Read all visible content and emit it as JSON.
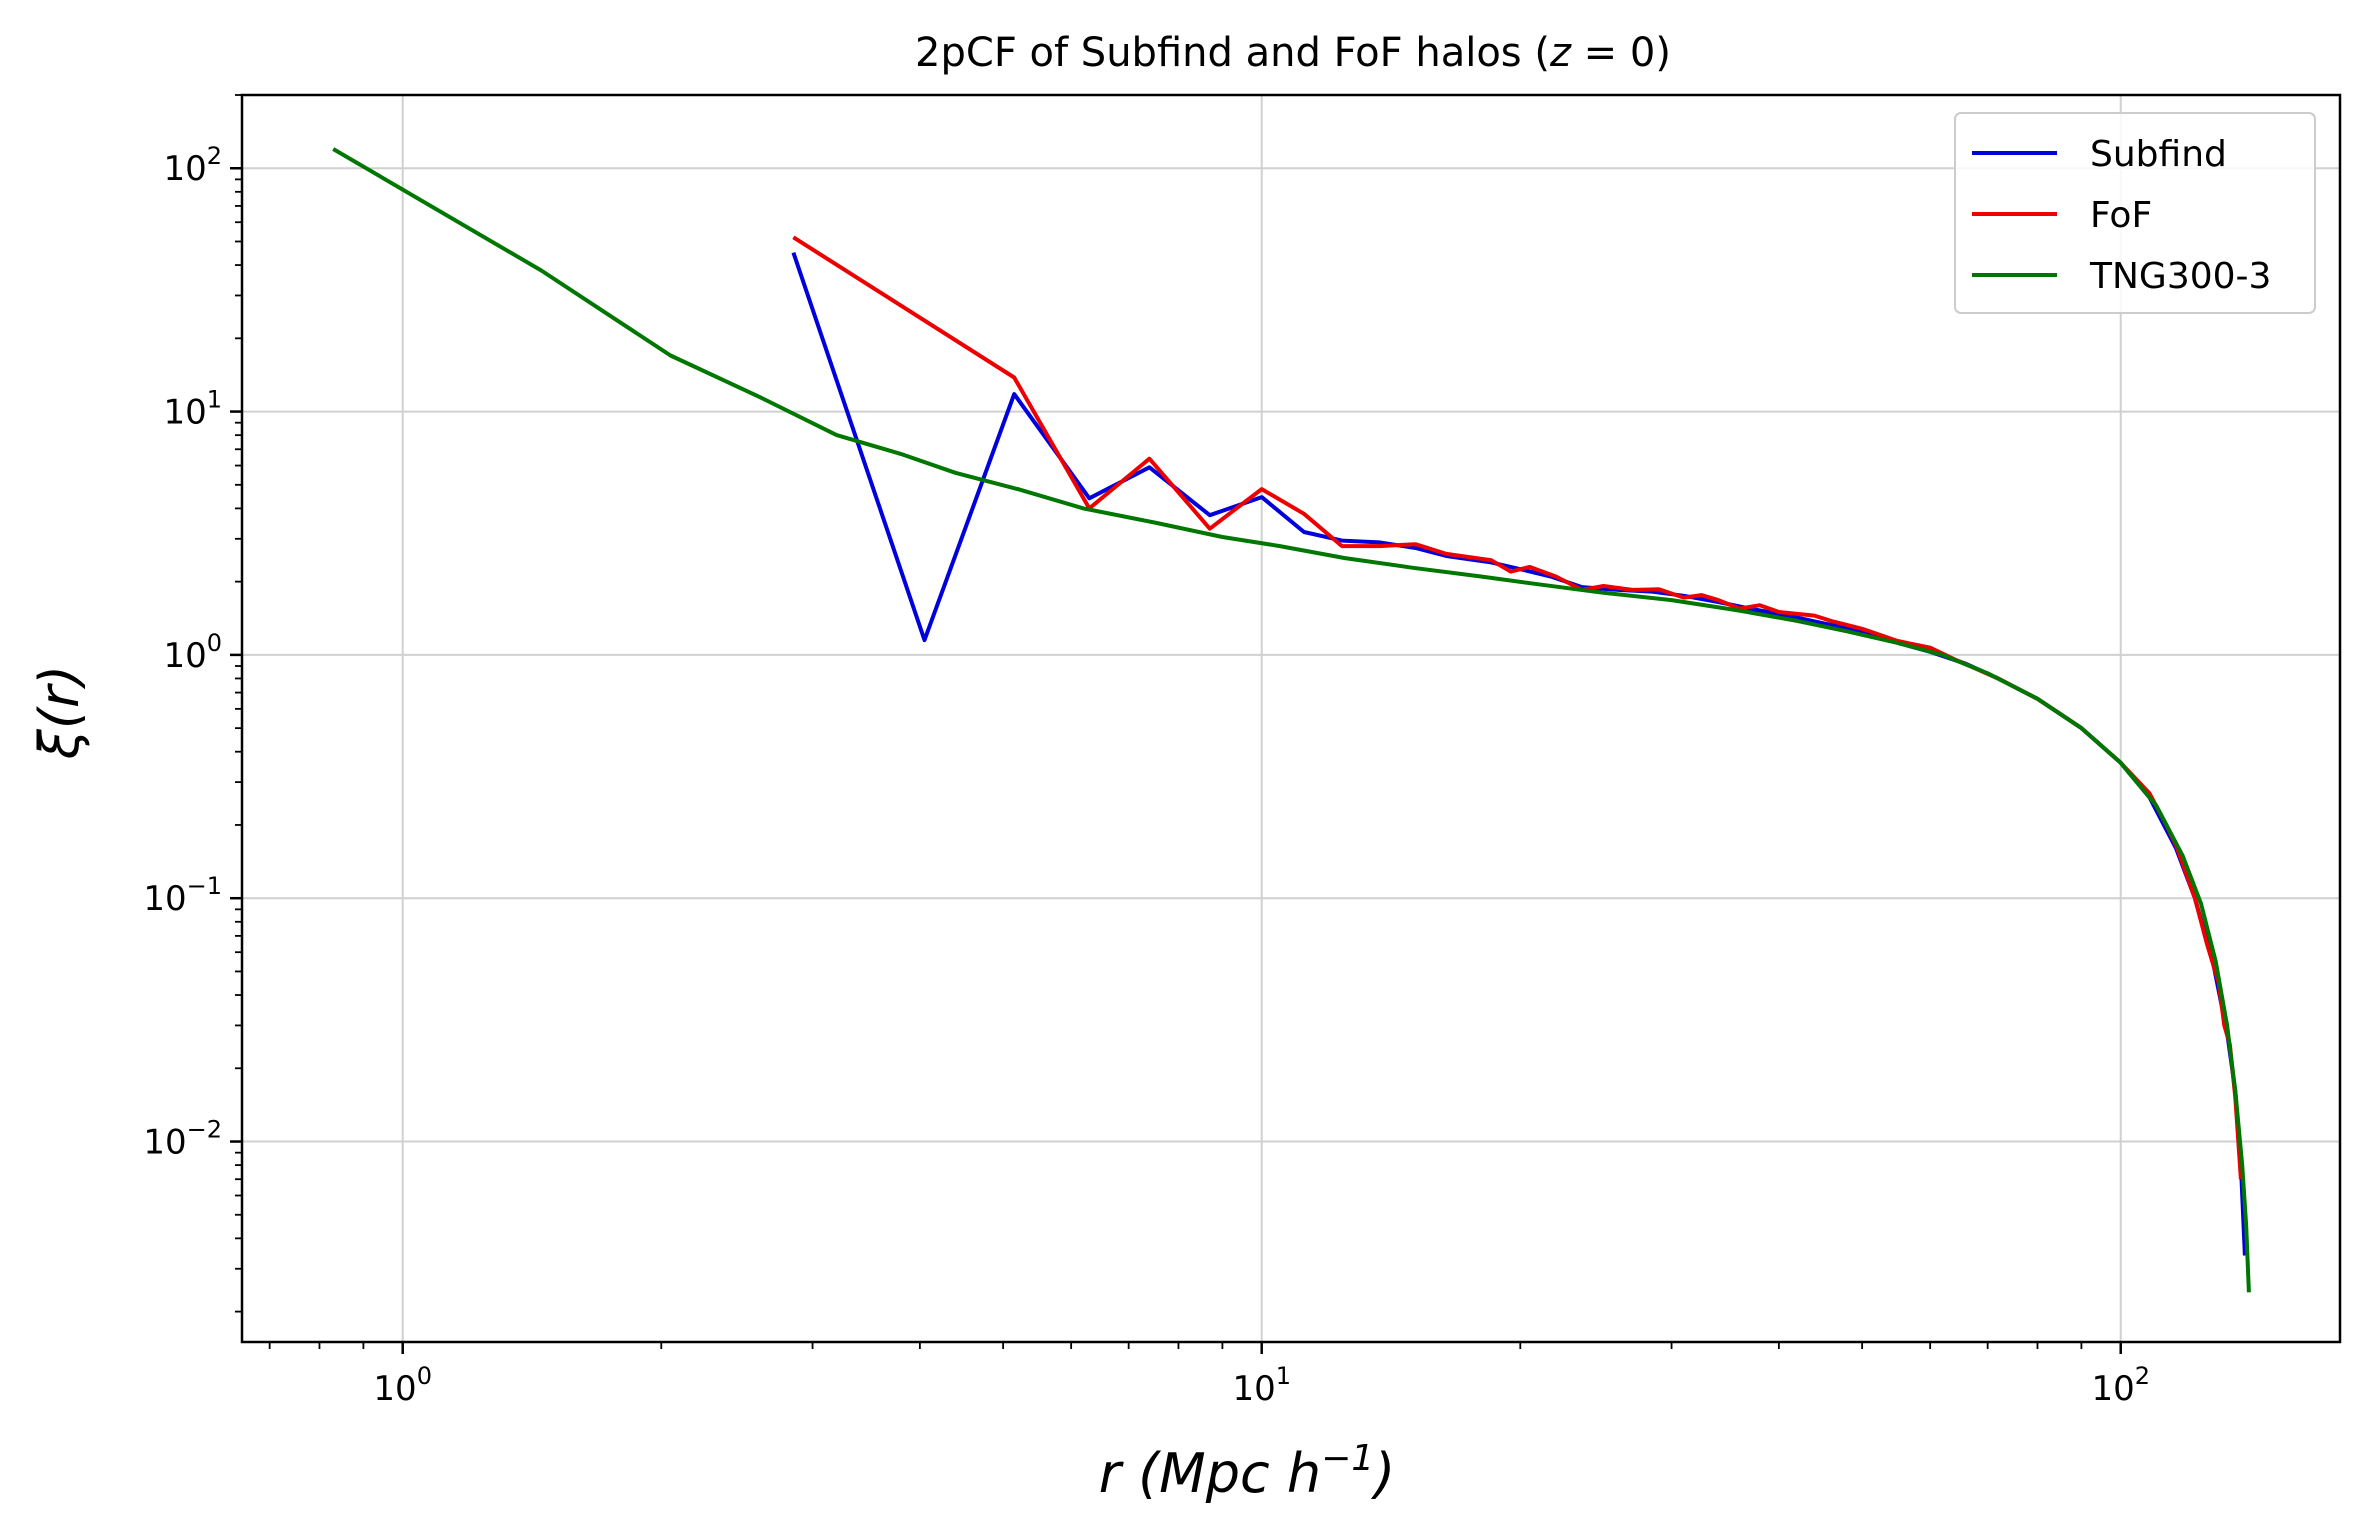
{
  "chart_data": {
    "type": "line",
    "title": "2pCF of Subfind and FoF halos (z = 0)",
    "xlabel": "r (Mpc h⁻¹)",
    "ylabel": "ξ(r)",
    "x_scale": "log",
    "y_scale": "log",
    "xlim": [
      0.65,
      180
    ],
    "ylim": [
      0.0015,
      200
    ],
    "grid": true,
    "legend_position": "top-right",
    "x_ticks": [
      {
        "value": 1,
        "base": "10",
        "exp": "0"
      },
      {
        "value": 10,
        "base": "10",
        "exp": "1"
      },
      {
        "value": 100,
        "base": "10",
        "exp": "2"
      }
    ],
    "y_ticks": [
      {
        "value": 0.01,
        "base": "10",
        "exp": "−2"
      },
      {
        "value": 0.1,
        "base": "10",
        "exp": "−1"
      },
      {
        "value": 1,
        "base": "10",
        "exp": "0"
      },
      {
        "value": 10,
        "base": "10",
        "exp": "1"
      },
      {
        "value": 100,
        "base": "10",
        "exp": "2"
      }
    ],
    "series": [
      {
        "name": "Subfind",
        "color": "#0000dd",
        "points": [
          [
            2.85,
            45
          ],
          [
            4.05,
            1.15
          ],
          [
            5.15,
            11.8
          ],
          [
            6.3,
            4.4
          ],
          [
            7.4,
            5.9
          ],
          [
            8.7,
            3.75
          ],
          [
            10.0,
            4.45
          ],
          [
            11.2,
            3.2
          ],
          [
            12.4,
            2.95
          ],
          [
            13.7,
            2.9
          ],
          [
            15.1,
            2.75
          ],
          [
            16.4,
            2.55
          ],
          [
            18.5,
            2.4
          ],
          [
            20.0,
            2.25
          ],
          [
            21.7,
            2.1
          ],
          [
            23.6,
            1.9
          ],
          [
            26.0,
            1.85
          ],
          [
            28.5,
            1.82
          ],
          [
            31.0,
            1.75
          ],
          [
            34.0,
            1.65
          ],
          [
            37.0,
            1.55
          ],
          [
            41.0,
            1.45
          ],
          [
            45.0,
            1.35
          ],
          [
            50.0,
            1.25
          ],
          [
            55.0,
            1.12
          ],
          [
            60.0,
            1.03
          ],
          [
            66.0,
            0.92
          ],
          [
            72.0,
            0.8
          ],
          [
            80.0,
            0.66
          ],
          [
            90.0,
            0.5
          ],
          [
            100.0,
            0.36
          ],
          [
            108.0,
            0.26
          ],
          [
            116.0,
            0.16
          ],
          [
            122.0,
            0.1
          ],
          [
            128.0,
            0.055
          ],
          [
            133.0,
            0.028
          ],
          [
            136.0,
            0.016
          ],
          [
            138.0,
            0.008
          ],
          [
            139.5,
            0.0034
          ]
        ]
      },
      {
        "name": "FoF",
        "color": "#ee0000",
        "points": [
          [
            2.85,
            52
          ],
          [
            5.15,
            13.8
          ],
          [
            6.3,
            4.0
          ],
          [
            7.4,
            6.4
          ],
          [
            8.7,
            3.3
          ],
          [
            10.0,
            4.8
          ],
          [
            11.2,
            3.8
          ],
          [
            12.4,
            2.8
          ],
          [
            13.7,
            2.8
          ],
          [
            15.1,
            2.85
          ],
          [
            16.4,
            2.6
          ],
          [
            18.5,
            2.45
          ],
          [
            19.5,
            2.2
          ],
          [
            20.5,
            2.3
          ],
          [
            22.0,
            2.1
          ],
          [
            23.6,
            1.85
          ],
          [
            25.0,
            1.92
          ],
          [
            27.0,
            1.85
          ],
          [
            29.0,
            1.86
          ],
          [
            31.0,
            1.72
          ],
          [
            32.5,
            1.76
          ],
          [
            34.0,
            1.68
          ],
          [
            36.0,
            1.55
          ],
          [
            38.0,
            1.6
          ],
          [
            40.0,
            1.5
          ],
          [
            44.0,
            1.45
          ],
          [
            46.0,
            1.38
          ],
          [
            50.0,
            1.28
          ],
          [
            55.0,
            1.14
          ],
          [
            60.0,
            1.07
          ],
          [
            64.0,
            0.96
          ],
          [
            72.0,
            0.8
          ],
          [
            80.0,
            0.66
          ],
          [
            90.0,
            0.5
          ],
          [
            100.0,
            0.36
          ],
          [
            108.0,
            0.27
          ],
          [
            113.0,
            0.2
          ],
          [
            116.0,
            0.165
          ],
          [
            122.0,
            0.1
          ],
          [
            126.0,
            0.065
          ],
          [
            130.0,
            0.045
          ],
          [
            132.0,
            0.03
          ],
          [
            134.0,
            0.025
          ],
          [
            136.0,
            0.015
          ],
          [
            138.0,
            0.007
          ]
        ]
      },
      {
        "name": "TNG300-3",
        "color": "#007700",
        "points": [
          [
            0.83,
            120
          ],
          [
            1.45,
            38
          ],
          [
            2.05,
            17
          ],
          [
            2.6,
            11.5
          ],
          [
            3.2,
            8.0
          ],
          [
            3.8,
            6.7
          ],
          [
            4.4,
            5.6
          ],
          [
            5.2,
            4.8
          ],
          [
            6.2,
            4.0
          ],
          [
            7.5,
            3.5
          ],
          [
            9.0,
            3.05
          ],
          [
            10.5,
            2.8
          ],
          [
            12.5,
            2.5
          ],
          [
            15.0,
            2.28
          ],
          [
            18.0,
            2.1
          ],
          [
            21.0,
            1.95
          ],
          [
            25.0,
            1.8
          ],
          [
            30.0,
            1.68
          ],
          [
            36.0,
            1.52
          ],
          [
            42.0,
            1.38
          ],
          [
            48.0,
            1.25
          ],
          [
            55.0,
            1.12
          ],
          [
            62.0,
            1.0
          ],
          [
            70.0,
            0.84
          ],
          [
            80.0,
            0.66
          ],
          [
            90.0,
            0.5
          ],
          [
            100.0,
            0.36
          ],
          [
            110.0,
            0.24
          ],
          [
            118.0,
            0.15
          ],
          [
            124.0,
            0.095
          ],
          [
            129.0,
            0.055
          ],
          [
            133.0,
            0.03
          ],
          [
            136.0,
            0.016
          ],
          [
            138.5,
            0.008
          ],
          [
            140.0,
            0.0045
          ],
          [
            141.0,
            0.0024
          ]
        ]
      }
    ]
  }
}
